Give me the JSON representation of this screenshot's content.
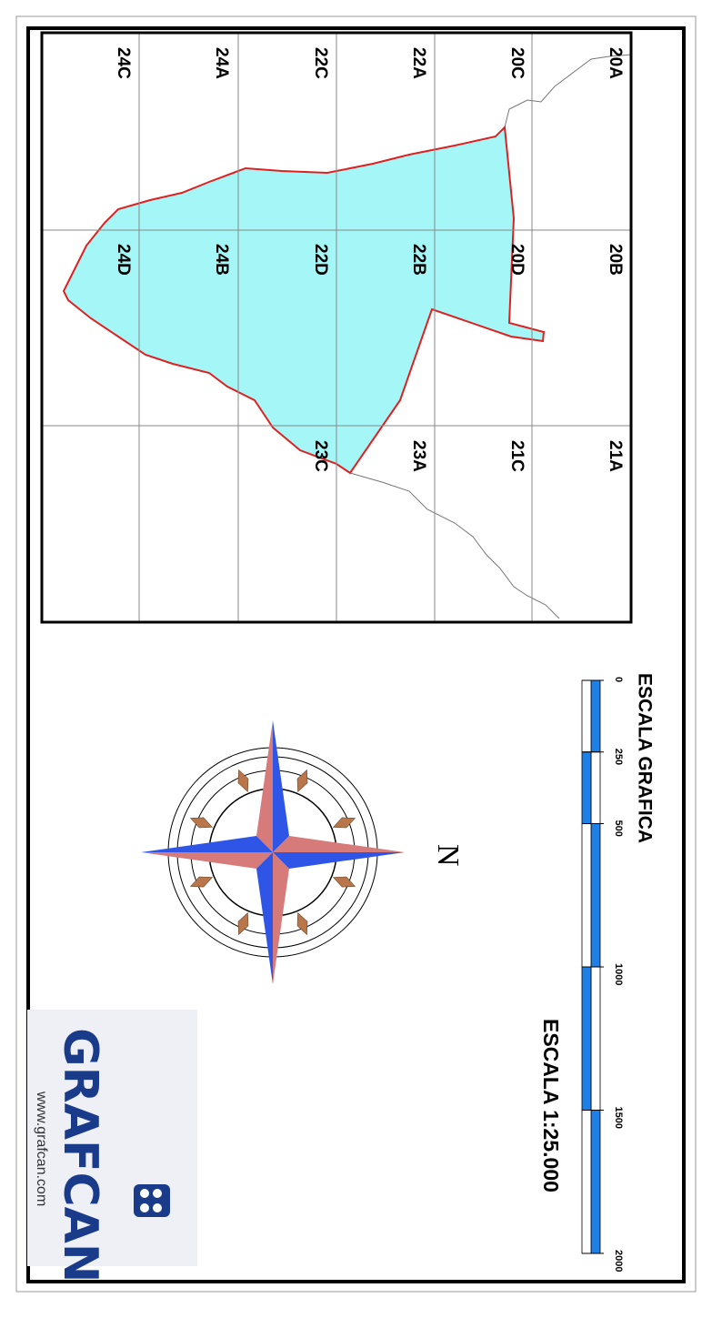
{
  "map": {
    "sheets": [
      [
        "20A",
        "20B",
        "21A"
      ],
      [
        "20C",
        "20D",
        "21C"
      ],
      [
        "22A",
        "22B",
        "23A"
      ],
      [
        "22C",
        "22D",
        "23C"
      ],
      [
        "24A",
        "24B",
        null
      ],
      [
        "24C",
        "24D",
        null
      ]
    ]
  },
  "scale": {
    "title": "ESCALA GRAFICA",
    "ticks": [
      0,
      250,
      500,
      1000,
      1500,
      2000
    ],
    "ratio": "ESCALA 1:25.000"
  },
  "north": "N",
  "logo": {
    "name": "GRAFCAN",
    "url": "www.grafcan.com"
  }
}
